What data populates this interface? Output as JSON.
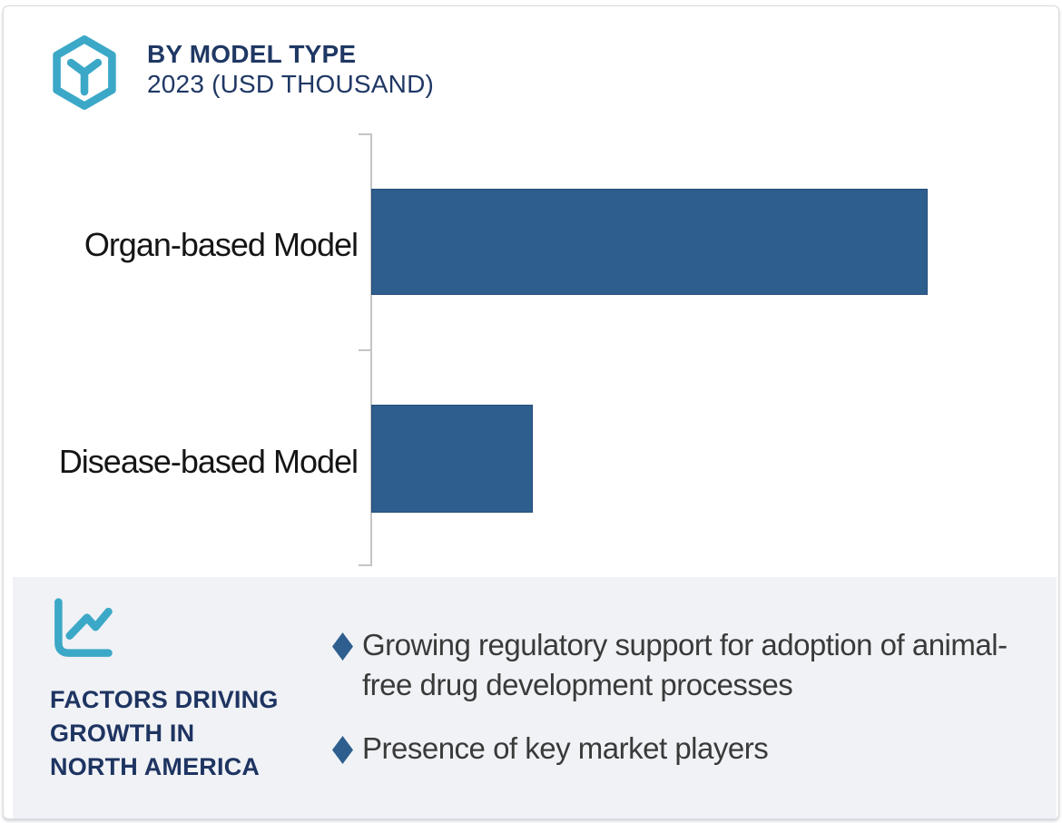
{
  "header": {
    "logo_icon": "hexagon-cube-icon",
    "title": "BY MODEL TYPE",
    "subtitle": "2023 (USD THOUSAND)"
  },
  "chart_data": {
    "type": "bar",
    "orientation": "horizontal",
    "title": "BY MODEL TYPE",
    "subtitle": "2023 (USD THOUSAND)",
    "unit": "USD Thousand",
    "year": "2023",
    "categories": [
      "Organ-based Model",
      "Disease-based Model"
    ],
    "values_pct_of_max": [
      100,
      29
    ],
    "value_axis_labels_shown": false,
    "data_labels_shown": false,
    "grid": false,
    "legend": "none",
    "bar_color": "#2e5e8e",
    "axis_color": "#c5c5c5"
  },
  "footer": {
    "icon": "line-chart-icon",
    "heading_lines": [
      "FACTORS DRIVING",
      "GROWTH IN",
      "NORTH AMERICA"
    ],
    "bullet_marker": "diamond",
    "bullets": [
      "Growing regulatory support for adoption of animal-free drug development processes",
      "Presence of key market players"
    ],
    "background_color": "#f0f2f6"
  },
  "colors": {
    "accent_teal": "#3ca8c7",
    "navy": "#1f3864",
    "bar_blue": "#2e5e8e",
    "text_dark": "#3a3a3a"
  }
}
